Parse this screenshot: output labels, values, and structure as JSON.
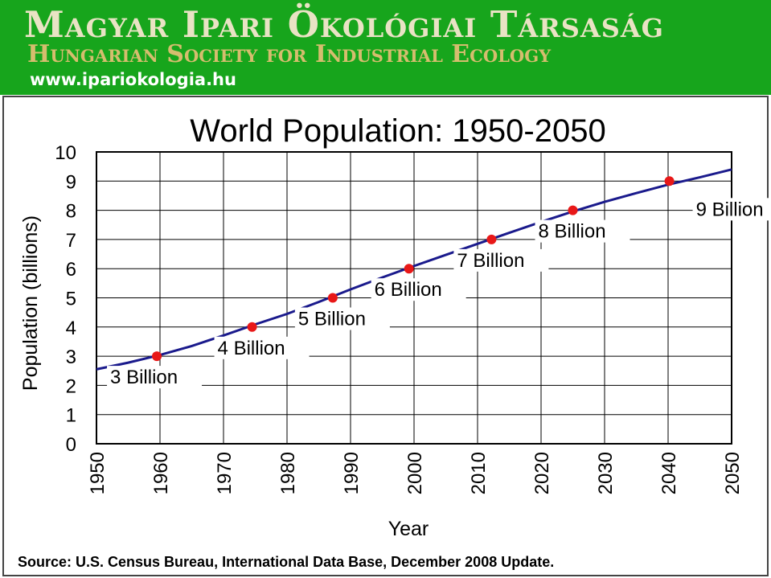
{
  "banner": {
    "title": "Magyar Ipari Ökológiai Társaság",
    "subtitle": "Hungarian Society for Industrial Ecology",
    "url": "www.ipariokologia.hu",
    "bg_color": "#17a51c"
  },
  "chart_data": {
    "type": "line",
    "title": "World Population: 1950-2050",
    "xlabel": "Year",
    "ylabel": "Population (billions)",
    "source": "Source: U.S. Census Bureau, International Data Base, December 2008 Update.",
    "xlim": [
      1950,
      2050
    ],
    "ylim": [
      0,
      10
    ],
    "x_ticks": [
      "1950",
      "1960",
      "1970",
      "1980",
      "1990",
      "2000",
      "2010",
      "2020",
      "2030",
      "2040",
      "2050"
    ],
    "y_ticks": [
      "0",
      "1",
      "2",
      "3",
      "4",
      "5",
      "6",
      "7",
      "8",
      "9",
      "10"
    ],
    "grid": true,
    "series": [
      {
        "x": [
          1950,
          1955,
          1960,
          1965,
          1970,
          1975,
          1980,
          1985,
          1990,
          1995,
          2000,
          2005,
          2010,
          2015,
          2020,
          2025,
          2030,
          2035,
          2040,
          2045,
          2050
        ],
        "values": [
          2.55,
          2.78,
          3.04,
          3.35,
          3.71,
          4.09,
          4.45,
          4.86,
          5.29,
          5.7,
          6.09,
          6.47,
          6.85,
          7.23,
          7.6,
          7.96,
          8.29,
          8.59,
          8.88,
          9.13,
          9.4
        ],
        "color": "#1a1a8c"
      }
    ],
    "milestones": [
      {
        "x": 1959.5,
        "y": 3,
        "label": "3 Billion"
      },
      {
        "x": 1974.5,
        "y": 4,
        "label": "4 Billion"
      },
      {
        "x": 1987.2,
        "y": 5,
        "label": "5 Billion"
      },
      {
        "x": 1999.2,
        "y": 6,
        "label": "6 Billion"
      },
      {
        "x": 2012.2,
        "y": 7,
        "label": "7 Billion"
      },
      {
        "x": 2025,
        "y": 8,
        "label": "8 Billion"
      },
      {
        "x": 2040.2,
        "y": 9,
        "label": "9 Billion"
      }
    ],
    "milestone_color": "#e81818"
  }
}
